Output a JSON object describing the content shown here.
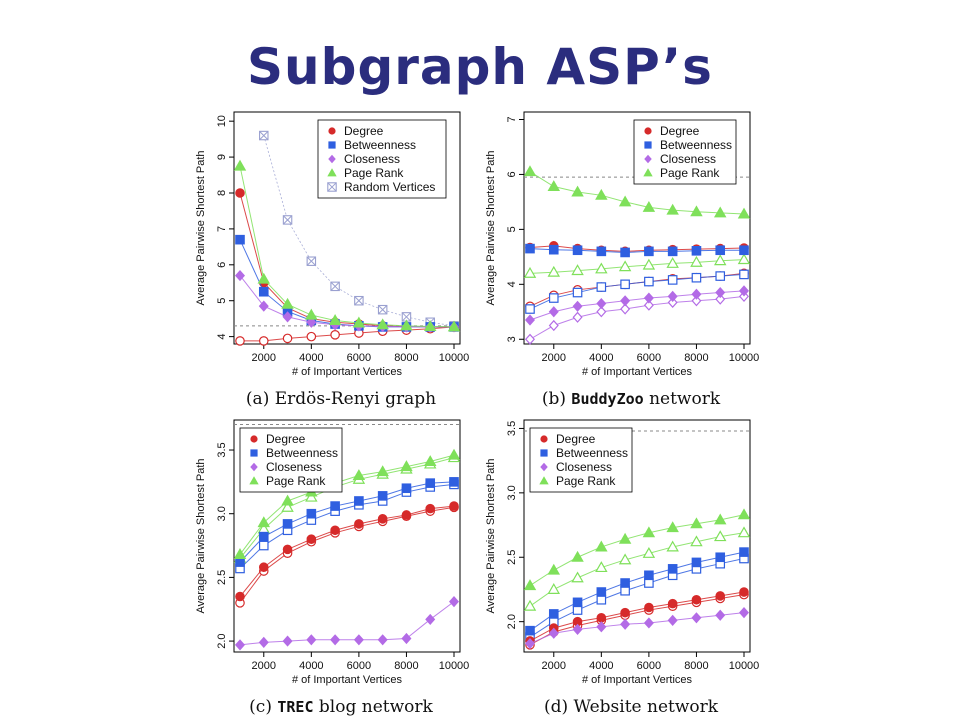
{
  "slide": {
    "title": "Subgraph ASP’s",
    "title_color": "#2b2d7e"
  },
  "colors": {
    "degree": "#d62a2a",
    "betweenness": "#2f5fe0",
    "closeness": "#b36be6",
    "pagerank": "#7fe05a",
    "random": "#9aa0d0"
  },
  "chart_data": [
    {
      "type": "line",
      "caption": [
        "(a) Erdös-Renyi graph"
      ],
      "xlabel": "# of Important Vertices",
      "ylabel": "Average Pairwise Shortest Path",
      "x": [
        1000,
        2000,
        3000,
        4000,
        5000,
        6000,
        7000,
        8000,
        9000,
        10000
      ],
      "xticks": [
        2000,
        4000,
        6000,
        8000,
        10000
      ],
      "xlim": [
        1000,
        10000
      ],
      "yticks": [
        "4",
        "5",
        "6",
        "7",
        "8",
        "9",
        "10"
      ],
      "ylim": [
        3.85,
        10.2
      ],
      "ref_line": 4.3,
      "legend": [
        "Degree",
        "Betweenness",
        "Closeness",
        "Page Rank",
        "Random Vertices"
      ],
      "series": [
        {
          "name": "Degree",
          "key": "degree",
          "marker": "circle",
          "filled": true,
          "values": [
            8.0,
            5.5,
            4.8,
            4.5,
            4.4,
            4.35,
            4.3,
            4.28,
            4.27,
            4.27
          ]
        },
        {
          "name": "Degree",
          "key": "degree",
          "marker": "circle",
          "filled": false,
          "values": [
            3.88,
            3.88,
            3.95,
            4.0,
            4.05,
            4.1,
            4.15,
            4.18,
            4.22,
            4.27
          ]
        },
        {
          "name": "Betweenness",
          "key": "betweenness",
          "marker": "square",
          "filled": true,
          "values": [
            6.7,
            5.25,
            4.7,
            4.45,
            4.35,
            4.3,
            4.27,
            4.27,
            4.27,
            4.27
          ]
        },
        {
          "name": "Closeness",
          "key": "closeness",
          "marker": "diamond",
          "filled": true,
          "values": [
            5.7,
            4.85,
            4.55,
            4.4,
            4.33,
            4.3,
            4.28,
            4.27,
            4.27,
            4.27
          ]
        },
        {
          "name": "Page Rank",
          "key": "pagerank",
          "marker": "triangle",
          "filled": true,
          "values": [
            8.75,
            5.6,
            4.9,
            4.6,
            4.45,
            4.38,
            4.33,
            4.3,
            4.28,
            4.27
          ]
        },
        {
          "name": "Random Vertices",
          "key": "random",
          "marker": "xbox",
          "filled": false,
          "values": [
            null,
            9.6,
            7.25,
            6.1,
            5.4,
            5.0,
            4.75,
            4.55,
            4.4,
            4.3
          ]
        }
      ]
    },
    {
      "type": "line",
      "caption": [
        "(b) ",
        "BuddyZoo",
        " network"
      ],
      "xlabel": "# of Important Vertices",
      "ylabel": "Average Pairwise Shortest Path",
      "x": [
        1000,
        2000,
        3000,
        4000,
        5000,
        6000,
        7000,
        8000,
        9000,
        10000
      ],
      "xticks": [
        2000,
        4000,
        6000,
        8000,
        10000
      ],
      "xlim": [
        1000,
        10000
      ],
      "yticks": [
        "3",
        "4",
        "5",
        "6",
        "7"
      ],
      "ylim": [
        2.95,
        7.1
      ],
      "ref_line": 5.95,
      "legend": [
        "Degree",
        "Betweenness",
        "Closeness",
        "Page Rank"
      ],
      "series": [
        {
          "name": "Degree",
          "key": "degree",
          "marker": "circle",
          "filled": true,
          "values": [
            4.67,
            4.7,
            4.65,
            4.62,
            4.6,
            4.62,
            4.63,
            4.64,
            4.65,
            4.66
          ]
        },
        {
          "name": "Degree",
          "key": "degree",
          "marker": "circle",
          "filled": false,
          "values": [
            3.6,
            3.8,
            3.9,
            3.95,
            4.0,
            4.05,
            4.1,
            4.12,
            4.15,
            4.2
          ]
        },
        {
          "name": "Betweenness",
          "key": "betweenness",
          "marker": "square",
          "filled": true,
          "values": [
            4.65,
            4.63,
            4.62,
            4.6,
            4.58,
            4.6,
            4.6,
            4.61,
            4.62,
            4.62
          ]
        },
        {
          "name": "Betweenness",
          "key": "betweenness",
          "marker": "square",
          "filled": false,
          "values": [
            3.55,
            3.75,
            3.85,
            3.95,
            4.0,
            4.05,
            4.08,
            4.12,
            4.15,
            4.18
          ]
        },
        {
          "name": "Closeness",
          "key": "closeness",
          "marker": "diamond",
          "filled": true,
          "values": [
            3.35,
            3.5,
            3.6,
            3.65,
            3.7,
            3.75,
            3.78,
            3.82,
            3.85,
            3.88
          ]
        },
        {
          "name": "Closeness",
          "key": "closeness",
          "marker": "diamond",
          "filled": false,
          "values": [
            3.0,
            3.25,
            3.4,
            3.5,
            3.55,
            3.62,
            3.67,
            3.7,
            3.73,
            3.78
          ]
        },
        {
          "name": "Page Rank",
          "key": "pagerank",
          "marker": "triangle",
          "filled": true,
          "values": [
            6.05,
            5.78,
            5.68,
            5.62,
            5.5,
            5.4,
            5.35,
            5.32,
            5.3,
            5.28
          ]
        },
        {
          "name": "Page Rank",
          "key": "pagerank",
          "marker": "triangle",
          "filled": false,
          "values": [
            4.2,
            4.22,
            4.25,
            4.28,
            4.32,
            4.35,
            4.38,
            4.4,
            4.43,
            4.45
          ]
        }
      ]
    },
    {
      "type": "line",
      "caption": [
        "(c) ",
        "TREC",
        " blog network"
      ],
      "xlabel": "# of Important Vertices",
      "ylabel": "Average Pairwise Shortest Path",
      "x": [
        1000,
        2000,
        3000,
        4000,
        5000,
        6000,
        7000,
        8000,
        9000,
        10000
      ],
      "xticks": [
        2000,
        4000,
        6000,
        8000,
        10000
      ],
      "xlim": [
        1000,
        10000
      ],
      "yticks": [
        "2.0",
        "2.5",
        "3.0",
        "3.5"
      ],
      "ylim": [
        1.93,
        3.72
      ],
      "ref_line": 3.7,
      "legend": [
        "Degree",
        "Betweenness",
        "Closeness",
        "Page Rank"
      ],
      "series": [
        {
          "name": "Degree",
          "key": "degree",
          "marker": "circle",
          "filled": true,
          "values": [
            2.35,
            2.58,
            2.72,
            2.8,
            2.87,
            2.92,
            2.96,
            2.99,
            3.04,
            3.06
          ]
        },
        {
          "name": "Degree",
          "key": "degree",
          "marker": "circle",
          "filled": false,
          "values": [
            2.3,
            2.55,
            2.69,
            2.78,
            2.85,
            2.9,
            2.94,
            2.98,
            3.02,
            3.05
          ]
        },
        {
          "name": "Betweenness",
          "key": "betweenness",
          "marker": "square",
          "filled": true,
          "values": [
            2.62,
            2.82,
            2.92,
            3.0,
            3.06,
            3.1,
            3.14,
            3.2,
            3.24,
            3.25
          ]
        },
        {
          "name": "Betweenness",
          "key": "betweenness",
          "marker": "square",
          "filled": false,
          "values": [
            2.57,
            2.75,
            2.87,
            2.95,
            3.02,
            3.07,
            3.1,
            3.17,
            3.21,
            3.23
          ]
        },
        {
          "name": "Closeness",
          "key": "closeness",
          "marker": "diamond",
          "filled": true,
          "values": [
            1.97,
            1.99,
            2.0,
            2.01,
            2.01,
            2.01,
            2.01,
            2.02,
            2.17,
            2.31
          ]
        },
        {
          "name": "Page Rank",
          "key": "pagerank",
          "marker": "triangle",
          "filled": true,
          "values": [
            2.68,
            2.93,
            3.1,
            3.17,
            3.24,
            3.3,
            3.33,
            3.37,
            3.41,
            3.46
          ]
        },
        {
          "name": "Page Rank",
          "key": "pagerank",
          "marker": "triangle",
          "filled": false,
          "values": [
            2.65,
            2.88,
            3.05,
            3.13,
            3.21,
            3.27,
            3.31,
            3.35,
            3.39,
            3.44
          ]
        }
      ]
    },
    {
      "type": "line",
      "caption": [
        "(d) Website network"
      ],
      "xlabel": "# of Important Vertices",
      "ylabel": "Average Pairwise Shortest Path",
      "x": [
        1000,
        2000,
        3000,
        4000,
        5000,
        6000,
        7000,
        8000,
        9000,
        10000
      ],
      "xticks": [
        2000,
        4000,
        6000,
        8000,
        10000
      ],
      "xlim": [
        1000,
        10000
      ],
      "yticks": [
        "2.0",
        "2.5",
        "3.0",
        "3.5"
      ],
      "ylim": [
        1.78,
        3.55
      ],
      "ref_line": 3.48,
      "legend": [
        "Degree",
        "Betweenness",
        "Closeness",
        "Page Rank"
      ],
      "series": [
        {
          "name": "Degree",
          "key": "degree",
          "marker": "circle",
          "filled": true,
          "values": [
            1.85,
            1.95,
            2.0,
            2.03,
            2.07,
            2.11,
            2.14,
            2.17,
            2.2,
            2.23
          ]
        },
        {
          "name": "Degree",
          "key": "degree",
          "marker": "circle",
          "filled": false,
          "values": [
            1.82,
            1.92,
            1.97,
            2.01,
            2.05,
            2.09,
            2.12,
            2.15,
            2.18,
            2.21
          ]
        },
        {
          "name": "Betweenness",
          "key": "betweenness",
          "marker": "square",
          "filled": true,
          "values": [
            1.93,
            2.06,
            2.15,
            2.23,
            2.3,
            2.36,
            2.41,
            2.46,
            2.5,
            2.54
          ]
        },
        {
          "name": "Betweenness",
          "key": "betweenness",
          "marker": "square",
          "filled": false,
          "values": [
            1.88,
            2.0,
            2.09,
            2.17,
            2.24,
            2.3,
            2.36,
            2.41,
            2.45,
            2.49
          ]
        },
        {
          "name": "Closeness",
          "key": "closeness",
          "marker": "diamond",
          "filled": true,
          "values": [
            1.83,
            1.91,
            1.94,
            1.96,
            1.98,
            1.99,
            2.01,
            2.03,
            2.05,
            2.07
          ]
        },
        {
          "name": "Page Rank",
          "key": "pagerank",
          "marker": "triangle",
          "filled": true,
          "values": [
            2.28,
            2.4,
            2.5,
            2.58,
            2.64,
            2.69,
            2.73,
            2.76,
            2.79,
            2.83
          ]
        },
        {
          "name": "Page Rank",
          "key": "pagerank",
          "marker": "triangle",
          "filled": false,
          "values": [
            2.12,
            2.25,
            2.34,
            2.42,
            2.48,
            2.53,
            2.58,
            2.62,
            2.66,
            2.69
          ]
        }
      ]
    }
  ]
}
